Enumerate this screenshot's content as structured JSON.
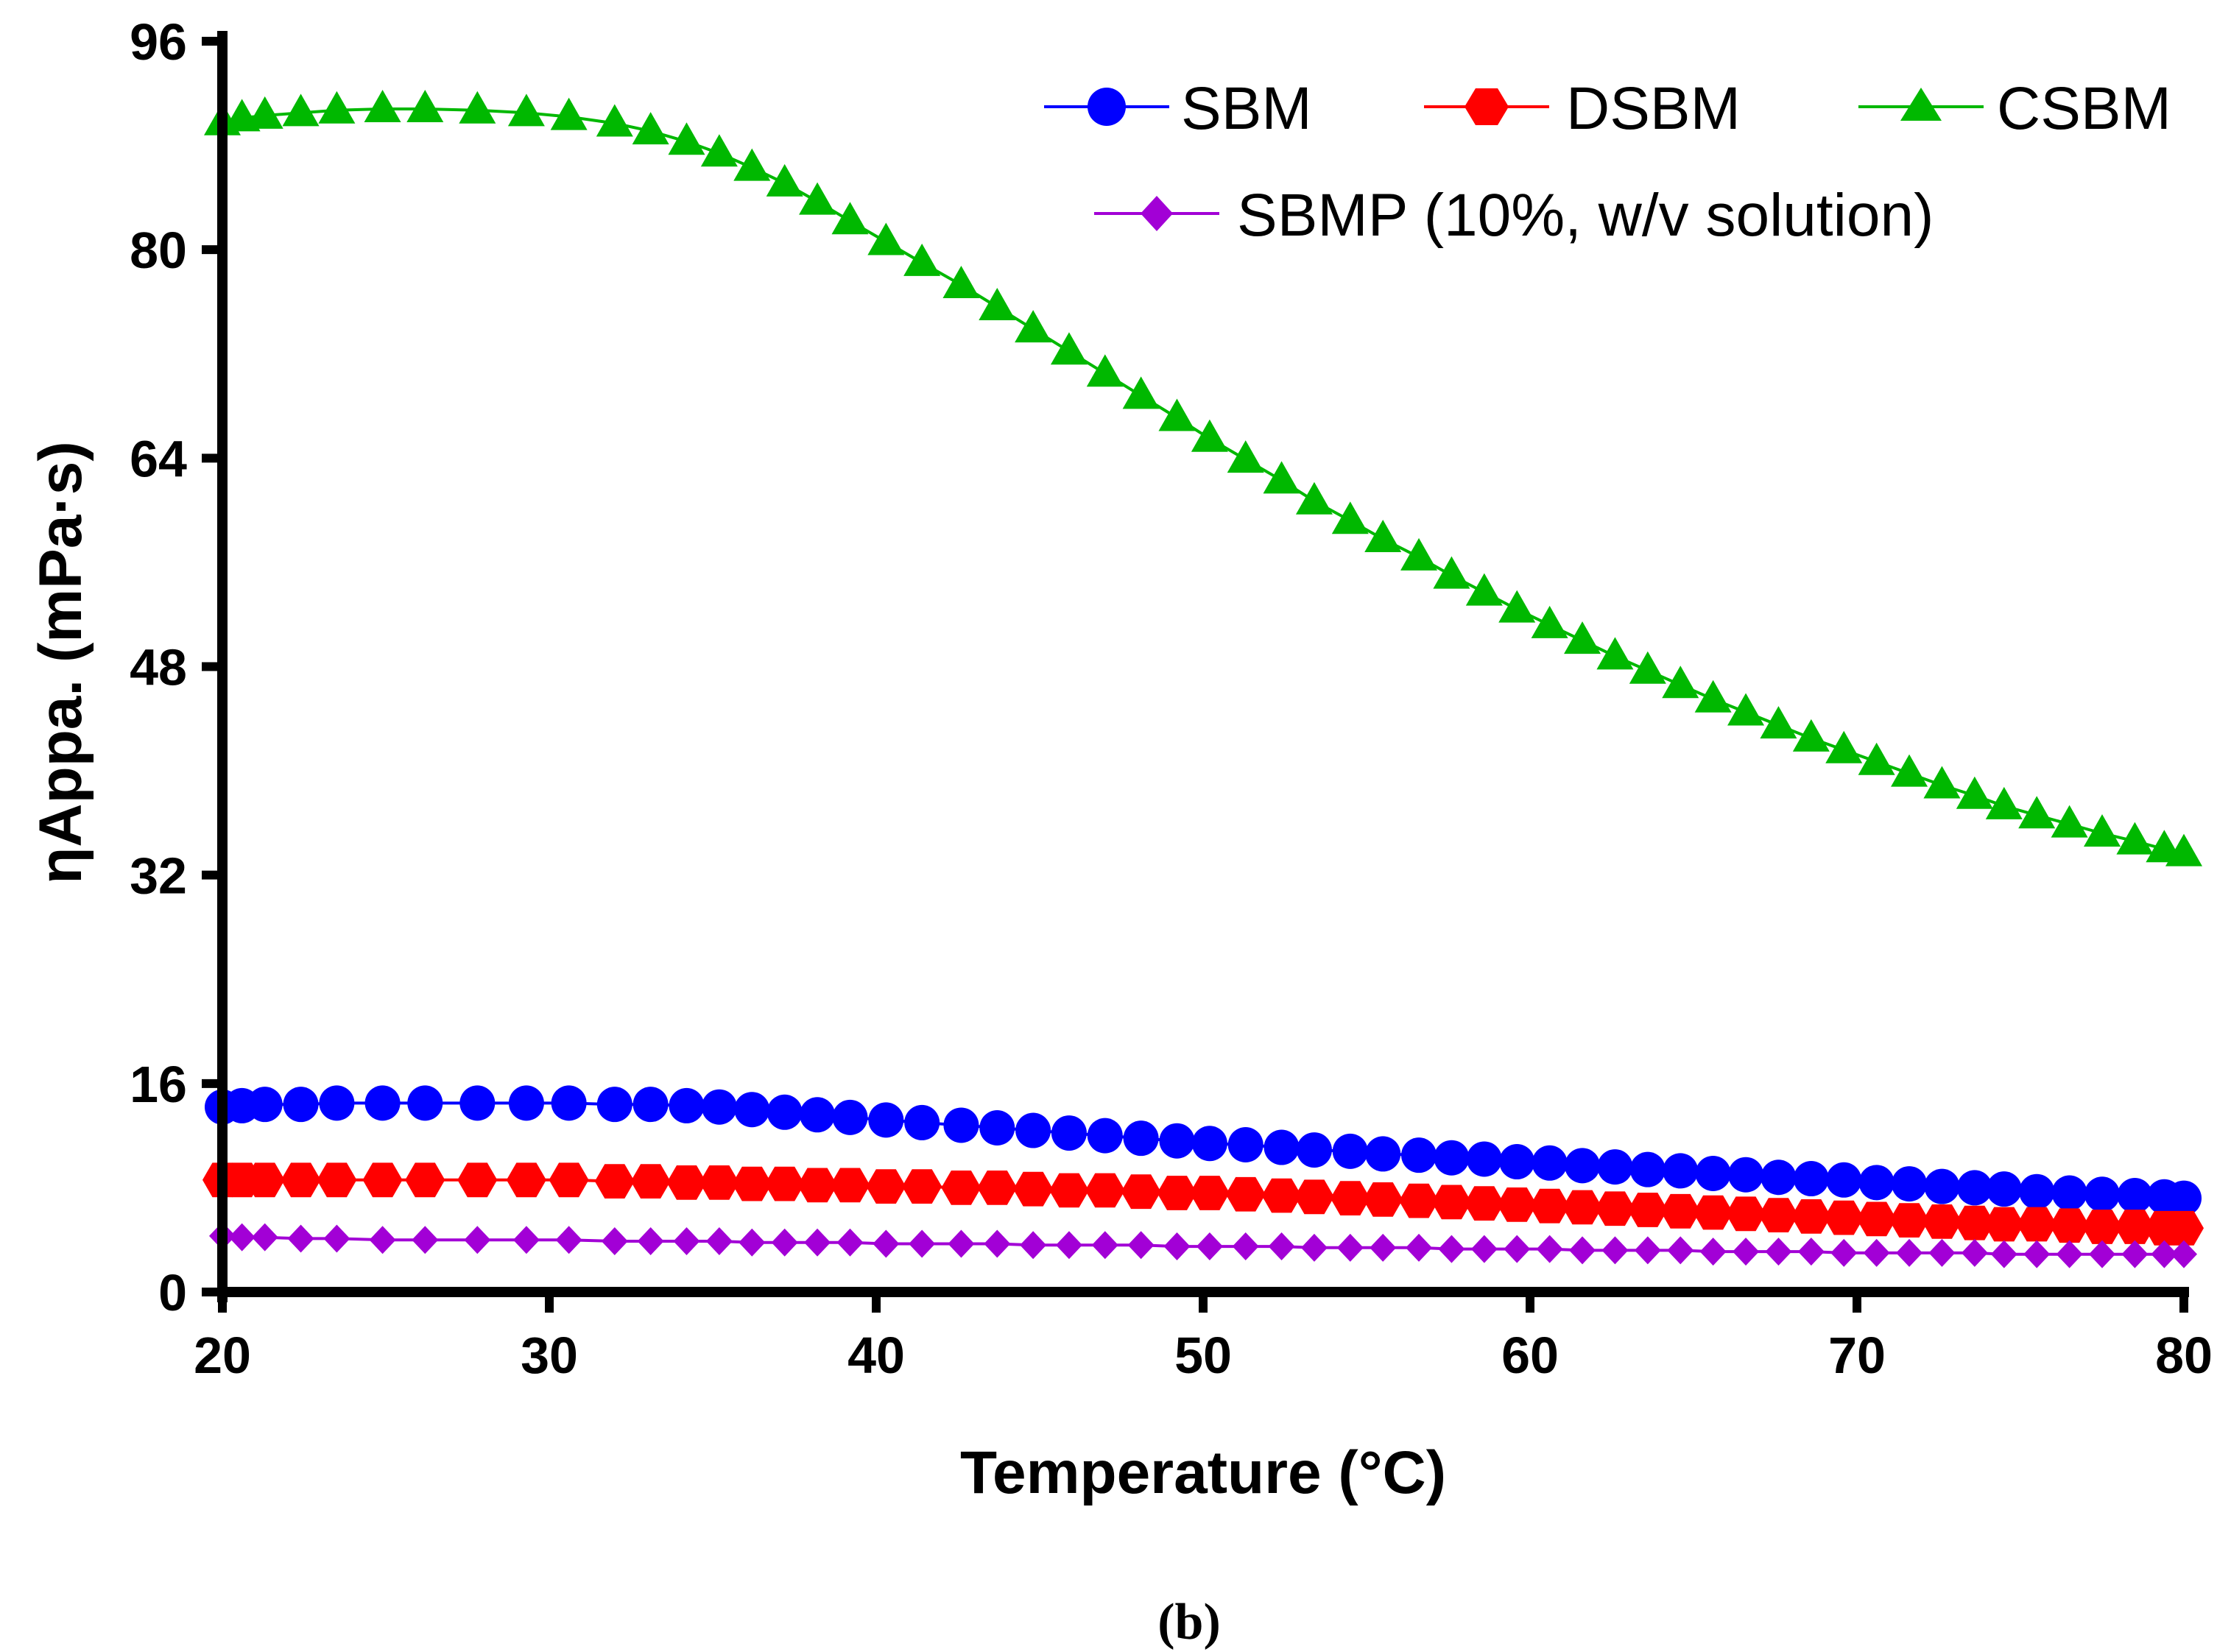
{
  "chart_data": {
    "type": "line",
    "xlabel": "Temperature (°C)",
    "ylabel": "ηAppa. (mPa·s)",
    "caption": "(b)",
    "xlim": [
      20,
      80
    ],
    "ylim": [
      0,
      96
    ],
    "xticks": [
      20,
      30,
      40,
      50,
      60,
      70,
      80
    ],
    "yticks": [
      0,
      16,
      32,
      48,
      64,
      80,
      96
    ],
    "legend_position": "top-right",
    "series": [
      {
        "name": "SBM",
        "color": "#0000ff",
        "marker": "circle",
        "x": [
          20,
          20.6,
          21.3,
          22.4,
          23.5,
          24.9,
          26.2,
          27.8,
          29.3,
          30.6,
          32,
          33.1,
          34.2,
          35.2,
          36.2,
          37.2,
          38.2,
          39.2,
          40.3,
          41.4,
          42.6,
          43.7,
          44.8,
          45.9,
          47,
          48.1,
          49.2,
          50.2,
          51.3,
          52.4,
          53.4,
          54.5,
          55.5,
          56.6,
          57.6,
          58.6,
          59.6,
          60.6,
          61.6,
          62.6,
          63.6,
          64.6,
          65.6,
          66.6,
          67.6,
          68.6,
          69.6,
          70.6,
          71.6,
          72.6,
          73.6,
          74.5,
          75.5,
          76.5,
          77.5,
          78.5,
          79.4,
          80
        ],
        "y": [
          14.2,
          14.3,
          14.4,
          14.4,
          14.5,
          14.5,
          14.5,
          14.5,
          14.5,
          14.5,
          14.4,
          14.4,
          14.3,
          14.2,
          14.0,
          13.8,
          13.6,
          13.4,
          13.2,
          13.0,
          12.8,
          12.6,
          12.4,
          12.2,
          12.0,
          11.8,
          11.6,
          11.4,
          11.3,
          11.1,
          10.9,
          10.8,
          10.6,
          10.5,
          10.3,
          10.2,
          10.0,
          9.9,
          9.7,
          9.6,
          9.4,
          9.3,
          9.1,
          9.0,
          8.8,
          8.7,
          8.6,
          8.4,
          8.3,
          8.1,
          8.0,
          7.9,
          7.7,
          7.6,
          7.5,
          7.4,
          7.3,
          7.2
        ]
      },
      {
        "name": "DSBM",
        "color": "#ff0000",
        "marker": "hexagon",
        "x": [
          20,
          20.6,
          21.3,
          22.4,
          23.5,
          24.9,
          26.2,
          27.8,
          29.3,
          30.6,
          32,
          33.1,
          34.2,
          35.2,
          36.2,
          37.2,
          38.2,
          39.2,
          40.3,
          41.4,
          42.6,
          43.7,
          44.8,
          45.9,
          47,
          48.1,
          49.2,
          50.2,
          51.3,
          52.4,
          53.4,
          54.5,
          55.5,
          56.6,
          57.6,
          58.6,
          59.6,
          60.6,
          61.6,
          62.6,
          63.6,
          64.6,
          65.6,
          66.6,
          67.6,
          68.6,
          69.6,
          70.6,
          71.6,
          72.6,
          73.6,
          74.5,
          75.5,
          76.5,
          77.5,
          78.5,
          79.4,
          80
        ],
        "y": [
          8.6,
          8.6,
          8.6,
          8.6,
          8.6,
          8.6,
          8.6,
          8.6,
          8.6,
          8.6,
          8.5,
          8.5,
          8.4,
          8.4,
          8.3,
          8.3,
          8.2,
          8.2,
          8.1,
          8.1,
          8.0,
          8.0,
          7.9,
          7.8,
          7.8,
          7.7,
          7.6,
          7.6,
          7.5,
          7.4,
          7.3,
          7.2,
          7.1,
          7.0,
          6.9,
          6.8,
          6.7,
          6.6,
          6.5,
          6.4,
          6.3,
          6.2,
          6.1,
          6.0,
          5.9,
          5.8,
          5.7,
          5.6,
          5.5,
          5.4,
          5.3,
          5.2,
          5.2,
          5.1,
          5.0,
          5.0,
          4.9,
          4.9
        ]
      },
      {
        "name": "CSBM",
        "color": "#00b800",
        "marker": "triangle",
        "x": [
          20,
          20.6,
          21.3,
          22.4,
          23.5,
          24.9,
          26.2,
          27.8,
          29.3,
          30.6,
          32,
          33.1,
          34.2,
          35.2,
          36.2,
          37.2,
          38.2,
          39.2,
          40.3,
          41.4,
          42.6,
          43.7,
          44.8,
          45.9,
          47,
          48.1,
          49.2,
          50.2,
          51.3,
          52.4,
          53.4,
          54.5,
          55.5,
          56.6,
          57.6,
          58.6,
          59.6,
          60.6,
          61.6,
          62.6,
          63.6,
          64.6,
          65.6,
          66.6,
          67.6,
          68.6,
          69.6,
          70.6,
          71.6,
          72.6,
          73.6,
          74.5,
          75.5,
          76.5,
          77.5,
          78.5,
          79.4,
          80
        ],
        "y": [
          89.8,
          90.1,
          90.3,
          90.5,
          90.7,
          90.8,
          90.8,
          90.7,
          90.5,
          90.2,
          89.7,
          89.1,
          88.3,
          87.4,
          86.3,
          85.1,
          83.7,
          82.2,
          80.6,
          79.0,
          77.3,
          75.6,
          73.9,
          72.2,
          70.5,
          68.8,
          67.1,
          65.5,
          63.9,
          62.3,
          60.7,
          59.2,
          57.8,
          56.4,
          55.0,
          53.7,
          52.4,
          51.2,
          50.0,
          48.8,
          47.7,
          46.6,
          45.5,
          44.5,
          43.5,
          42.5,
          41.6,
          40.7,
          39.8,
          38.9,
          38.1,
          37.3,
          36.6,
          35.9,
          35.2,
          34.6,
          34.0,
          33.7
        ]
      },
      {
        "name": "SBMP (10%, w/v solution)",
        "color": "#a200d6",
        "marker": "diamond",
        "x": [
          20,
          20.6,
          21.3,
          22.4,
          23.5,
          24.9,
          26.2,
          27.8,
          29.3,
          30.6,
          32,
          33.1,
          34.2,
          35.2,
          36.2,
          37.2,
          38.2,
          39.2,
          40.3,
          41.4,
          42.6,
          43.7,
          44.8,
          45.9,
          47,
          48.1,
          49.2,
          50.2,
          51.3,
          52.4,
          53.4,
          54.5,
          55.5,
          56.6,
          57.6,
          58.6,
          59.6,
          60.6,
          61.6,
          62.6,
          63.6,
          64.6,
          65.6,
          66.6,
          67.6,
          68.6,
          69.6,
          70.6,
          71.6,
          72.6,
          73.6,
          74.5,
          75.5,
          76.5,
          77.5,
          78.5,
          79.4,
          80
        ],
        "y": [
          4.3,
          4.2,
          4.2,
          4.1,
          4.1,
          4.0,
          4.0,
          4.0,
          4.0,
          4.0,
          3.9,
          3.9,
          3.9,
          3.9,
          3.8,
          3.8,
          3.8,
          3.8,
          3.7,
          3.7,
          3.7,
          3.7,
          3.6,
          3.6,
          3.6,
          3.6,
          3.5,
          3.5,
          3.5,
          3.5,
          3.4,
          3.4,
          3.4,
          3.4,
          3.3,
          3.3,
          3.3,
          3.3,
          3.2,
          3.2,
          3.2,
          3.2,
          3.1,
          3.1,
          3.1,
          3.1,
          3.0,
          3.0,
          3.0,
          3.0,
          3.0,
          2.9,
          2.9,
          2.9,
          2.9,
          2.9,
          2.9,
          2.9
        ]
      }
    ]
  }
}
